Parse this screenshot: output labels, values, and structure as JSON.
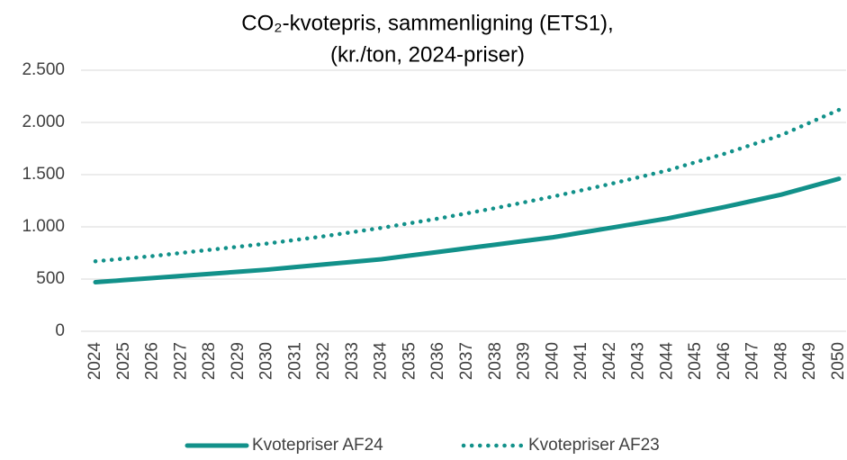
{
  "chart_data": {
    "type": "line",
    "title": [
      "CO₂-kvotepris, sammenligning (ETS1),",
      "(kr./ton, 2024-priser)"
    ],
    "categories": [
      "2024",
      "2025",
      "2026",
      "2027",
      "2028",
      "2029",
      "2030",
      "2031",
      "2032",
      "2033",
      "2034",
      "2035",
      "2036",
      "2037",
      "2038",
      "2039",
      "2040",
      "2041",
      "2042",
      "2043",
      "2044",
      "2045",
      "2046",
      "2047",
      "2048",
      "2049",
      "2050"
    ],
    "series": [
      {
        "name": "Kvotepriser AF24",
        "color": "#12918a",
        "style": "solid",
        "values": [
          470,
          490,
          510,
          530,
          550,
          570,
          590,
          615,
          640,
          665,
          690,
          725,
          760,
          795,
          830,
          865,
          900,
          945,
          990,
          1035,
          1080,
          1135,
          1190,
          1250,
          1310,
          1385,
          1460
        ]
      },
      {
        "name": "Kvotepriser AF23",
        "color": "#12918a",
        "style": "dotted",
        "values": [
          670,
          695,
          720,
          750,
          780,
          810,
          840,
          875,
          910,
          950,
          990,
          1035,
          1080,
          1130,
          1180,
          1235,
          1290,
          1350,
          1410,
          1475,
          1540,
          1620,
          1700,
          1790,
          1880,
          2000,
          2120
        ]
      }
    ],
    "ylim": [
      0,
      2500
    ],
    "yticks": [
      0,
      500,
      {
        "value": 1000,
        "label": "1.000"
      },
      {
        "value": 1500,
        "label": "1.500"
      },
      {
        "value": 2000,
        "label": "2.000"
      },
      {
        "value": 2500,
        "label": "2.500"
      }
    ],
    "grid": true,
    "legend": "bottom"
  }
}
